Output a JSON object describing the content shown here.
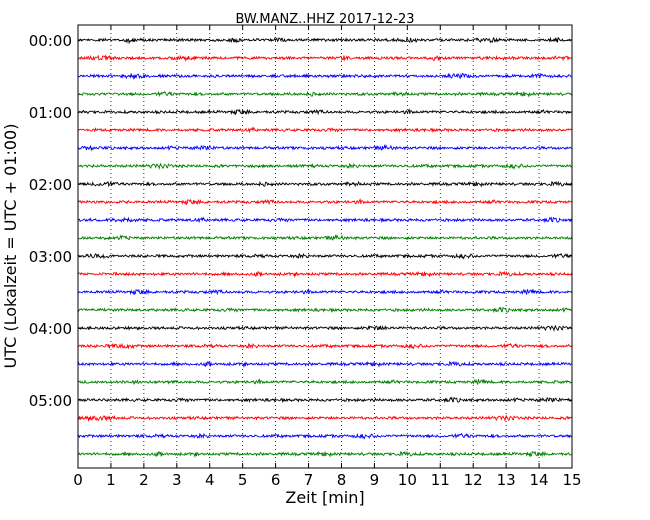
{
  "chart_data": {
    "type": "line",
    "title": "BW.MANZ..HHZ 2017-12-23",
    "xlabel": "Zeit  [min]",
    "ylabel": "UTC (Lokalzeit = UTC + 01:00)",
    "xlim": [
      0,
      15
    ],
    "x_ticks": [
      "0",
      "1",
      "2",
      "3",
      "4",
      "5",
      "6",
      "7",
      "8",
      "9",
      "10",
      "11",
      "12",
      "13",
      "14",
      "15"
    ],
    "y_tick_labels": [
      "00:00",
      "01:00",
      "02:00",
      "03:00",
      "04:00",
      "05:00"
    ],
    "rows_per_hour": 4,
    "row_count": 24,
    "row_colors": [
      "#000000",
      "#ff0000",
      "#0000ff",
      "#007f00"
    ],
    "vertical_grid": "dotted",
    "legend": "none"
  }
}
